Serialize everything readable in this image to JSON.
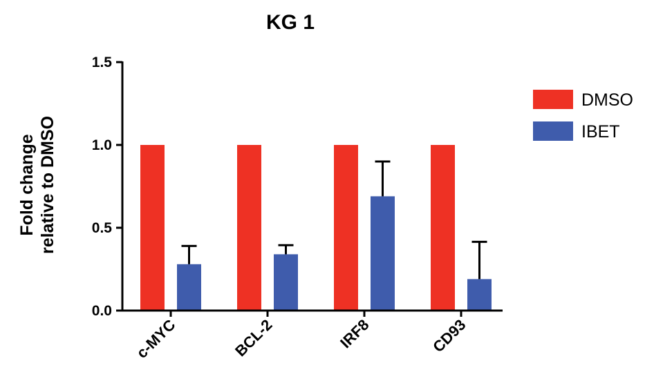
{
  "chart_data": {
    "type": "bar",
    "title": "KG 1",
    "xlabel": "",
    "ylabel": [
      "Fold change",
      "relative to DMSO"
    ],
    "ylim": [
      0,
      1.5
    ],
    "yticks": [
      "0.0",
      "0.5",
      "1.0",
      "1.5"
    ],
    "ytick_values": [
      0,
      0.5,
      1.0,
      1.5
    ],
    "categories": [
      "c-MYC",
      "BCL-2",
      "IRF8",
      "CD93"
    ],
    "series": [
      {
        "name": "DMSO",
        "color": "#ee3124",
        "values": [
          1.0,
          1.0,
          1.0,
          1.0
        ],
        "errors": [
          0,
          0,
          0,
          0
        ]
      },
      {
        "name": "IBET",
        "color": "#3f5cac",
        "values": [
          0.28,
          0.34,
          0.69,
          0.19
        ],
        "errors": [
          0.11,
          0.055,
          0.21,
          0.225
        ]
      }
    ],
    "legend_position": "top-right",
    "grid": false
  }
}
